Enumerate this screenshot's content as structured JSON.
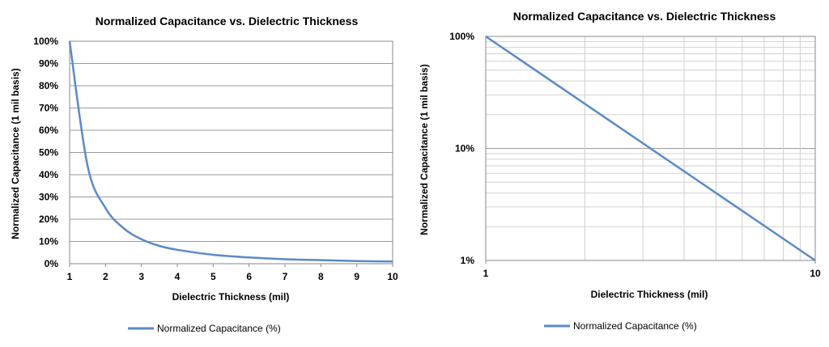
{
  "chart_data": [
    {
      "type": "line",
      "title": "Normalized Capacitance vs. Dielectric Thickness",
      "xlabel": "Dielectric Thickness (mil)",
      "ylabel": "Normalized Capacitance (1 mil basis)",
      "xscale": "linear",
      "yscale": "linear",
      "xlim": [
        1,
        10
      ],
      "ylim": [
        0,
        100
      ],
      "grid": "horizontal",
      "legend": "bottom",
      "x_ticks": [
        "1",
        "2",
        "3",
        "4",
        "5",
        "6",
        "7",
        "8",
        "9",
        "10"
      ],
      "y_ticks": [
        "0%",
        "10%",
        "20%",
        "30%",
        "40%",
        "50%",
        "60%",
        "70%",
        "80%",
        "90%",
        "100%"
      ],
      "series": [
        {
          "name": "Normalized Capacitance (%)",
          "color": "#5b8ac7",
          "x": [
            1,
            1.5,
            2,
            2.5,
            3,
            3.5,
            4,
            5,
            6,
            7,
            8,
            9,
            10
          ],
          "y": [
            100,
            44,
            25,
            16,
            11,
            8,
            6.25,
            4,
            2.8,
            2,
            1.6,
            1.2,
            1
          ]
        }
      ]
    },
    {
      "type": "line",
      "title": "Normalized Capacitance vs. Dielectric Thickness",
      "xlabel": "Dielectric Thickness (mil)",
      "ylabel": "Normalized Capacitance (1 mil basis)",
      "xscale": "log",
      "yscale": "log",
      "xlim": [
        1,
        10
      ],
      "ylim": [
        1,
        100
      ],
      "grid": "both",
      "legend": "bottom",
      "x_ticks": [
        "1",
        "10"
      ],
      "y_ticks": [
        "1%",
        "10%",
        "100%"
      ],
      "series": [
        {
          "name": "Normalized Capacitance (%)",
          "color": "#5b8ac7",
          "x": [
            1,
            10
          ],
          "y": [
            100,
            1
          ]
        }
      ]
    }
  ]
}
